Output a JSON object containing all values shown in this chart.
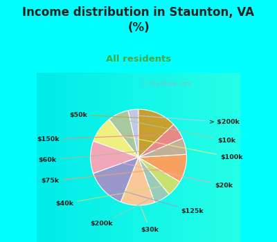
{
  "title": "Income distribution in Staunton, VA\n(%)",
  "subtitle": "All residents",
  "title_color": "#222222",
  "subtitle_color": "#44aa44",
  "background_color": "#00ffff",
  "chart_bg_left": "#c8ead8",
  "chart_bg_right": "#e8f8f8",
  "watermark": "ⓘ City-Data.com",
  "labels": [
    "> $200k",
    "$10k",
    "$100k",
    "$20k",
    "$125k",
    "$30k",
    "$200k",
    "$40k",
    "$75k",
    "$60k",
    "$150k",
    "$50k"
  ],
  "values": [
    3.5,
    7.0,
    9.0,
    11.0,
    13.5,
    11.5,
    5.5,
    5.5,
    9.5,
    5.5,
    5.5,
    13.0
  ],
  "colors": [
    "#c0c8e8",
    "#a8c8a0",
    "#f0f080",
    "#f0a8b8",
    "#9898cc",
    "#f8c898",
    "#98ccb8",
    "#c8e070",
    "#f8a060",
    "#c0b098",
    "#e88888",
    "#c8a030"
  ],
  "startangle": 90,
  "figsize": [
    4.0,
    3.5
  ],
  "dpi": 100
}
